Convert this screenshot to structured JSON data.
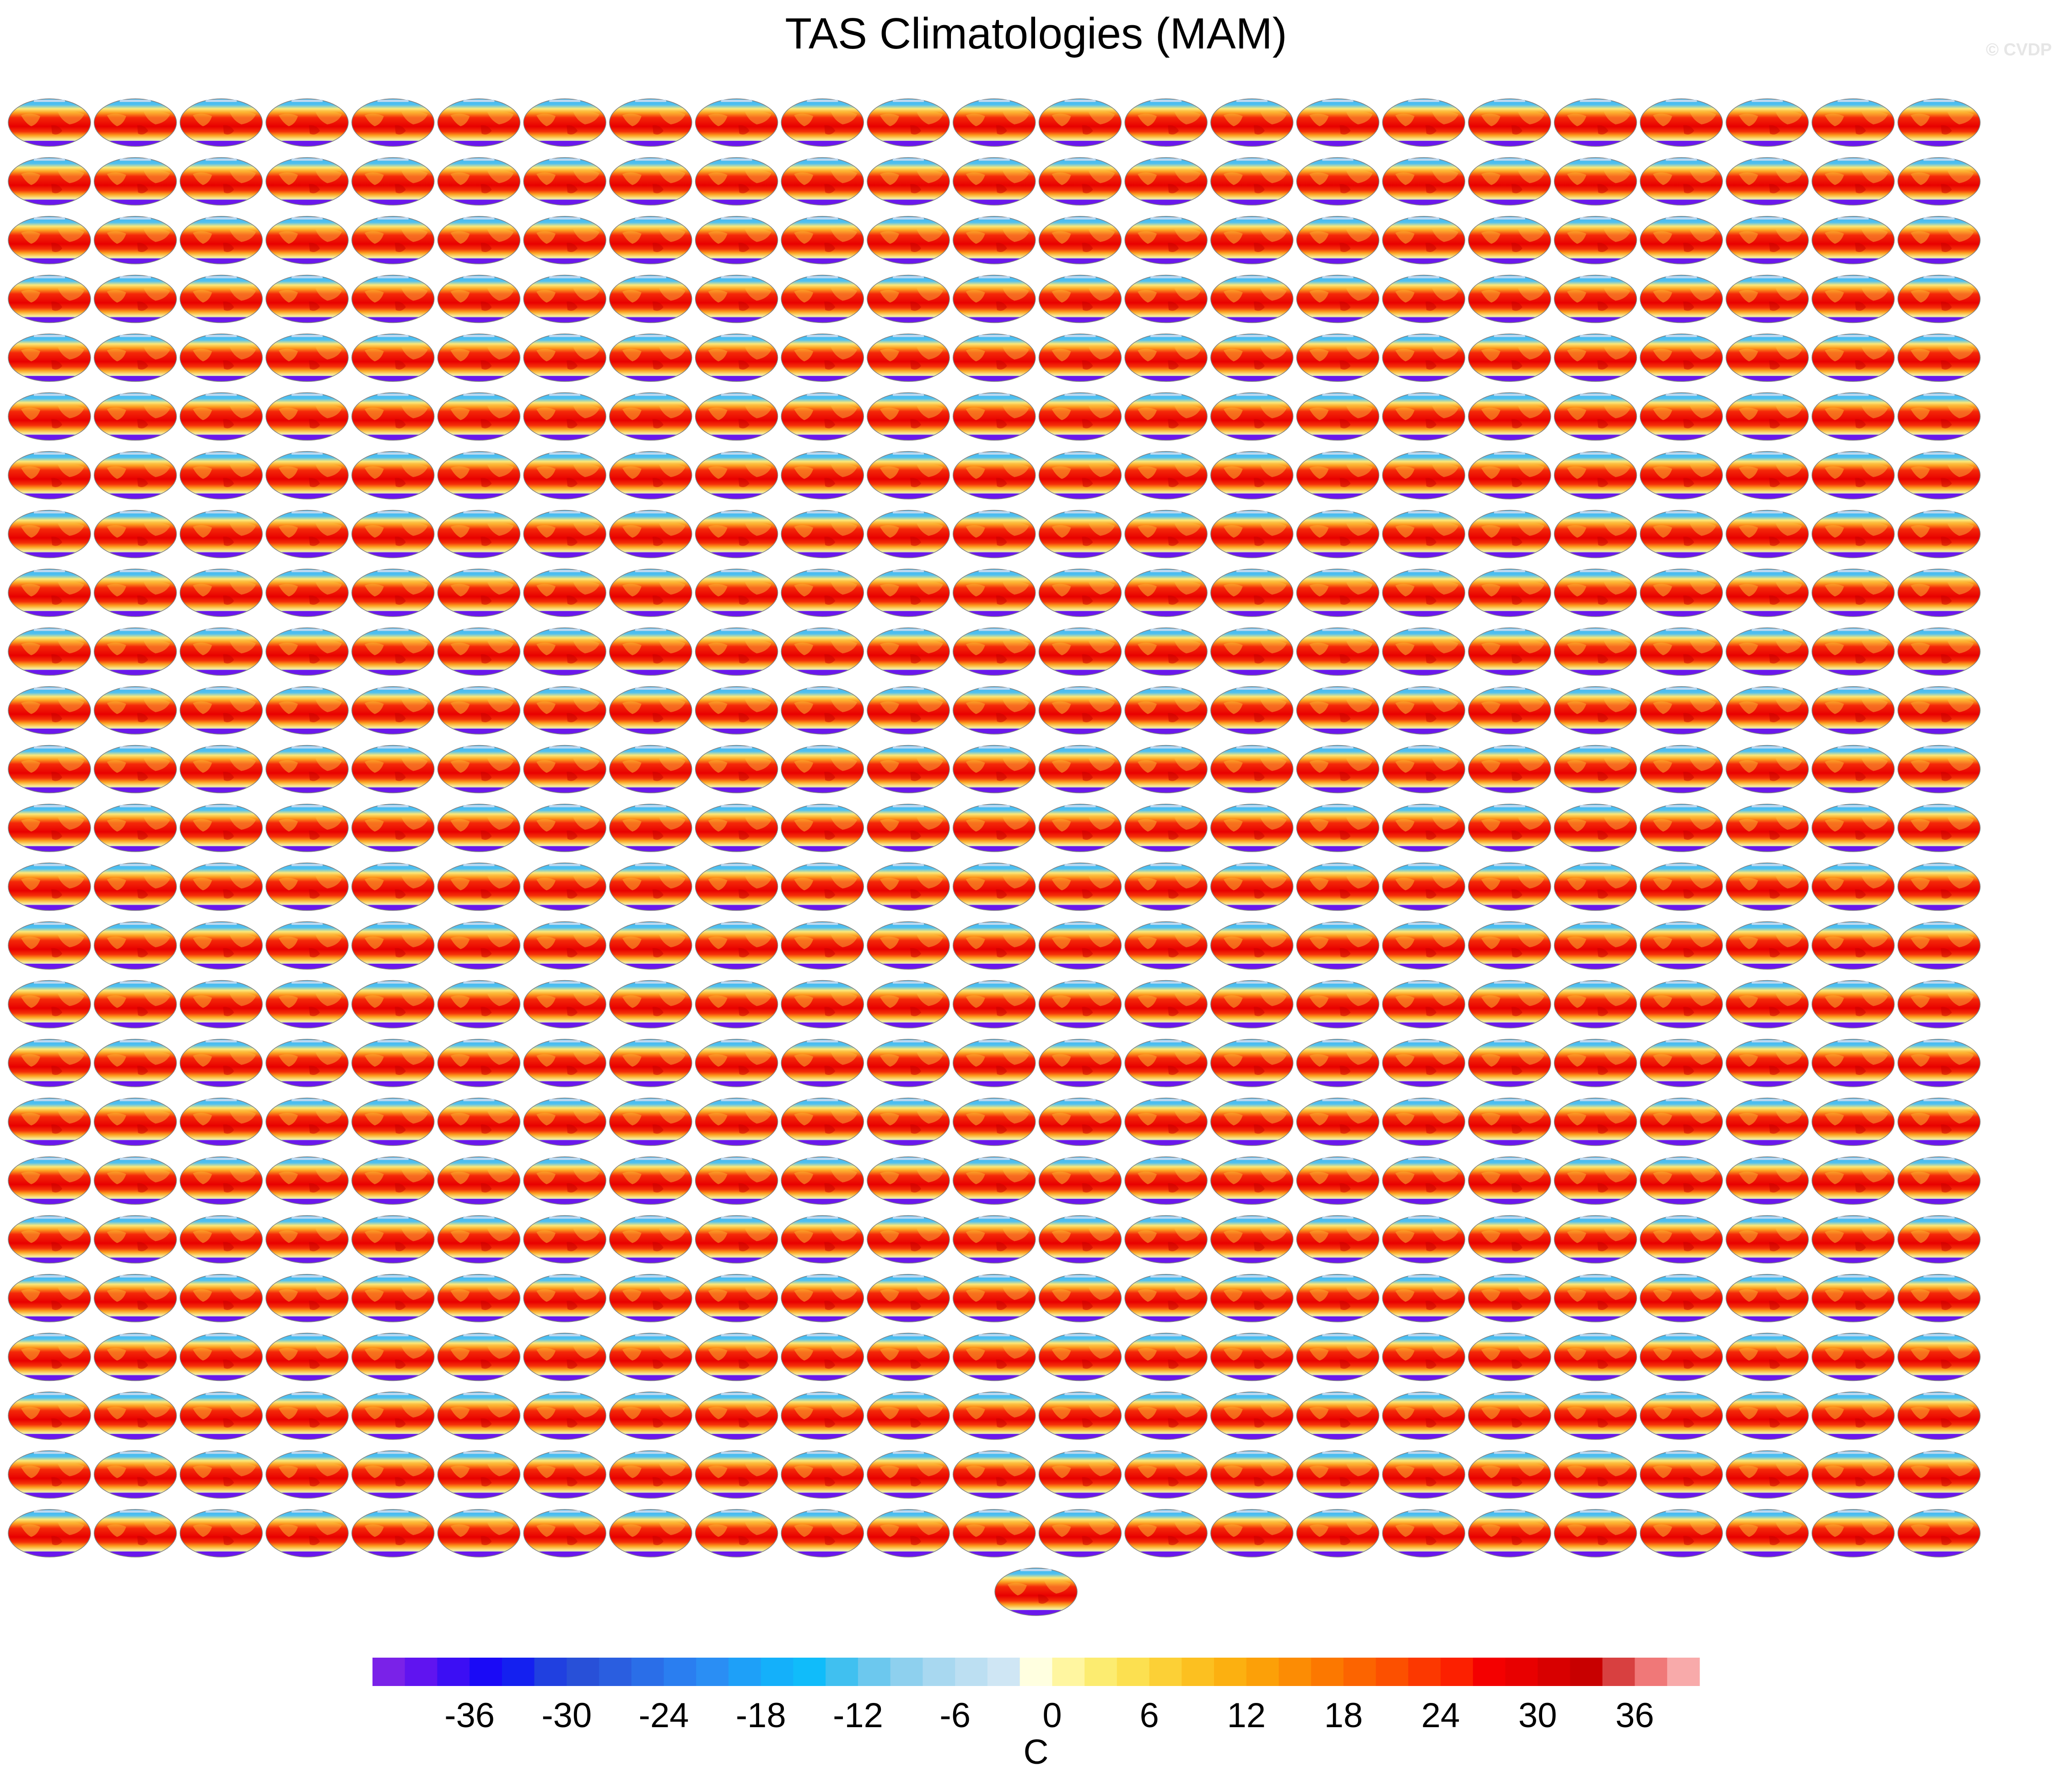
{
  "figure": {
    "title": "TAS Climatologies (MAM)",
    "credit": "© CVDP"
  },
  "chart_data": {
    "type": "heatmap",
    "title": "TAS Climatologies (MAM)",
    "layout": {
      "panel_rows": 25,
      "panel_cols": 23,
      "extra_panels_last_row": 1,
      "total_panels": 576,
      "projection": "Robinson (global map)",
      "variable": "surface air temperature, spring (MAM) climatology"
    },
    "colorbar": {
      "unit_label": "C",
      "tick_labels": [
        "-36",
        "-30",
        "-24",
        "-18",
        "-12",
        "-6",
        "0",
        "6",
        "12",
        "18",
        "24",
        "30",
        "36"
      ],
      "levels": [
        -42,
        -40,
        -38,
        -36,
        -34,
        -32,
        -30,
        -28,
        -26,
        -24,
        -22,
        -20,
        -18,
        -16,
        -14,
        -12,
        -10,
        -8,
        -6,
        -4,
        -2,
        0,
        2,
        4,
        6,
        8,
        10,
        12,
        14,
        16,
        18,
        20,
        22,
        24,
        26,
        28,
        30,
        32,
        34,
        36,
        38,
        40
      ],
      "colors": [
        "#7a22e8",
        "#6014f0",
        "#3c0ef4",
        "#1a0af6",
        "#1420f0",
        "#2040e0",
        "#2850d8",
        "#2a5ee0",
        "#2a6ee8",
        "#2a7ef0",
        "#2a8ef4",
        "#1ea0f8",
        "#14b0fa",
        "#10bcfa",
        "#40c0f0",
        "#6cc8ee",
        "#8ed0ee",
        "#a8d8f0",
        "#bcdff2",
        "#cfe6f4",
        "#ffffe0",
        "#fff6a0",
        "#fcec70",
        "#fce050",
        "#fcd036",
        "#fcc020",
        "#fcb010",
        "#fca008",
        "#fc8c04",
        "#fc7800",
        "#fc6400",
        "#fc5000",
        "#fc3800",
        "#fc2000",
        "#f40000",
        "#e80000",
        "#d80000",
        "#c80000",
        "#d84040",
        "#f07878",
        "#f8aaaa"
      ]
    },
    "panel_scale": {
      "min": -36,
      "max": 36,
      "unit": "C",
      "description": "Every panel is a global map: cold (blue/purple) polar regions, warm (orange/red) tropics"
    }
  }
}
